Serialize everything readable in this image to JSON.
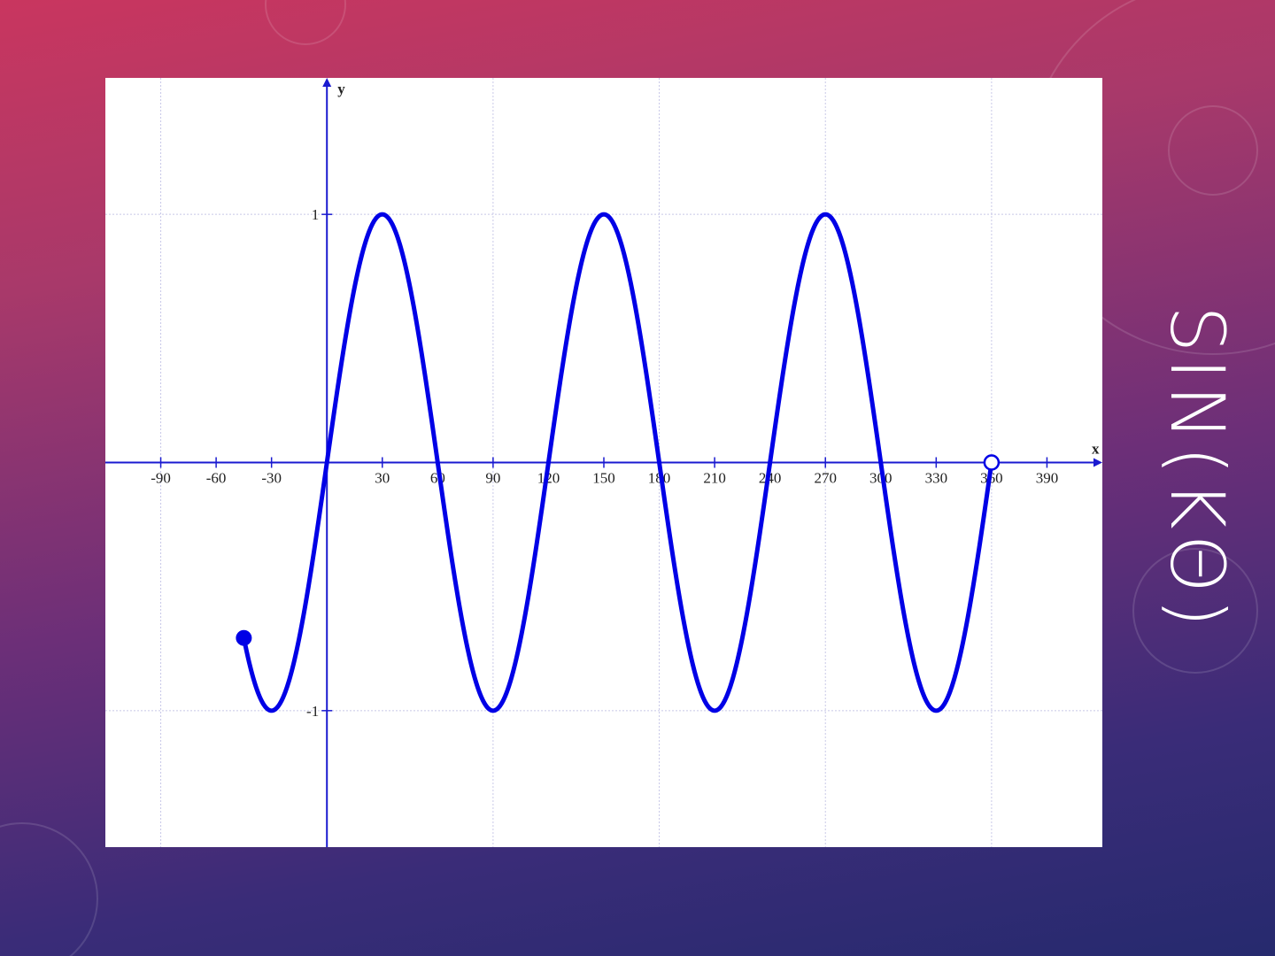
{
  "slide": {
    "title": "SIN(KΘ)"
  },
  "chart_data": {
    "type": "line",
    "function": "y = sin(3x)",
    "xlabel": "x",
    "ylabel": "y",
    "xlim": [
      -120,
      420
    ],
    "ylim": [
      -1.55,
      1.55
    ],
    "x_ticks": [
      -90,
      -60,
      -30,
      30,
      60,
      90,
      120,
      150,
      180,
      210,
      240,
      270,
      300,
      330,
      360,
      390
    ],
    "y_ticks": [
      1,
      -1
    ],
    "x_grid_step": 90,
    "grid": true,
    "domain": [
      -45,
      360
    ],
    "start_point": {
      "x": -45,
      "y": -0.707,
      "style": "closed"
    },
    "end_point": {
      "x": 360,
      "y": 0,
      "style": "open"
    },
    "series_color": "#0000e6",
    "axis_color": "#1a1ad0"
  }
}
